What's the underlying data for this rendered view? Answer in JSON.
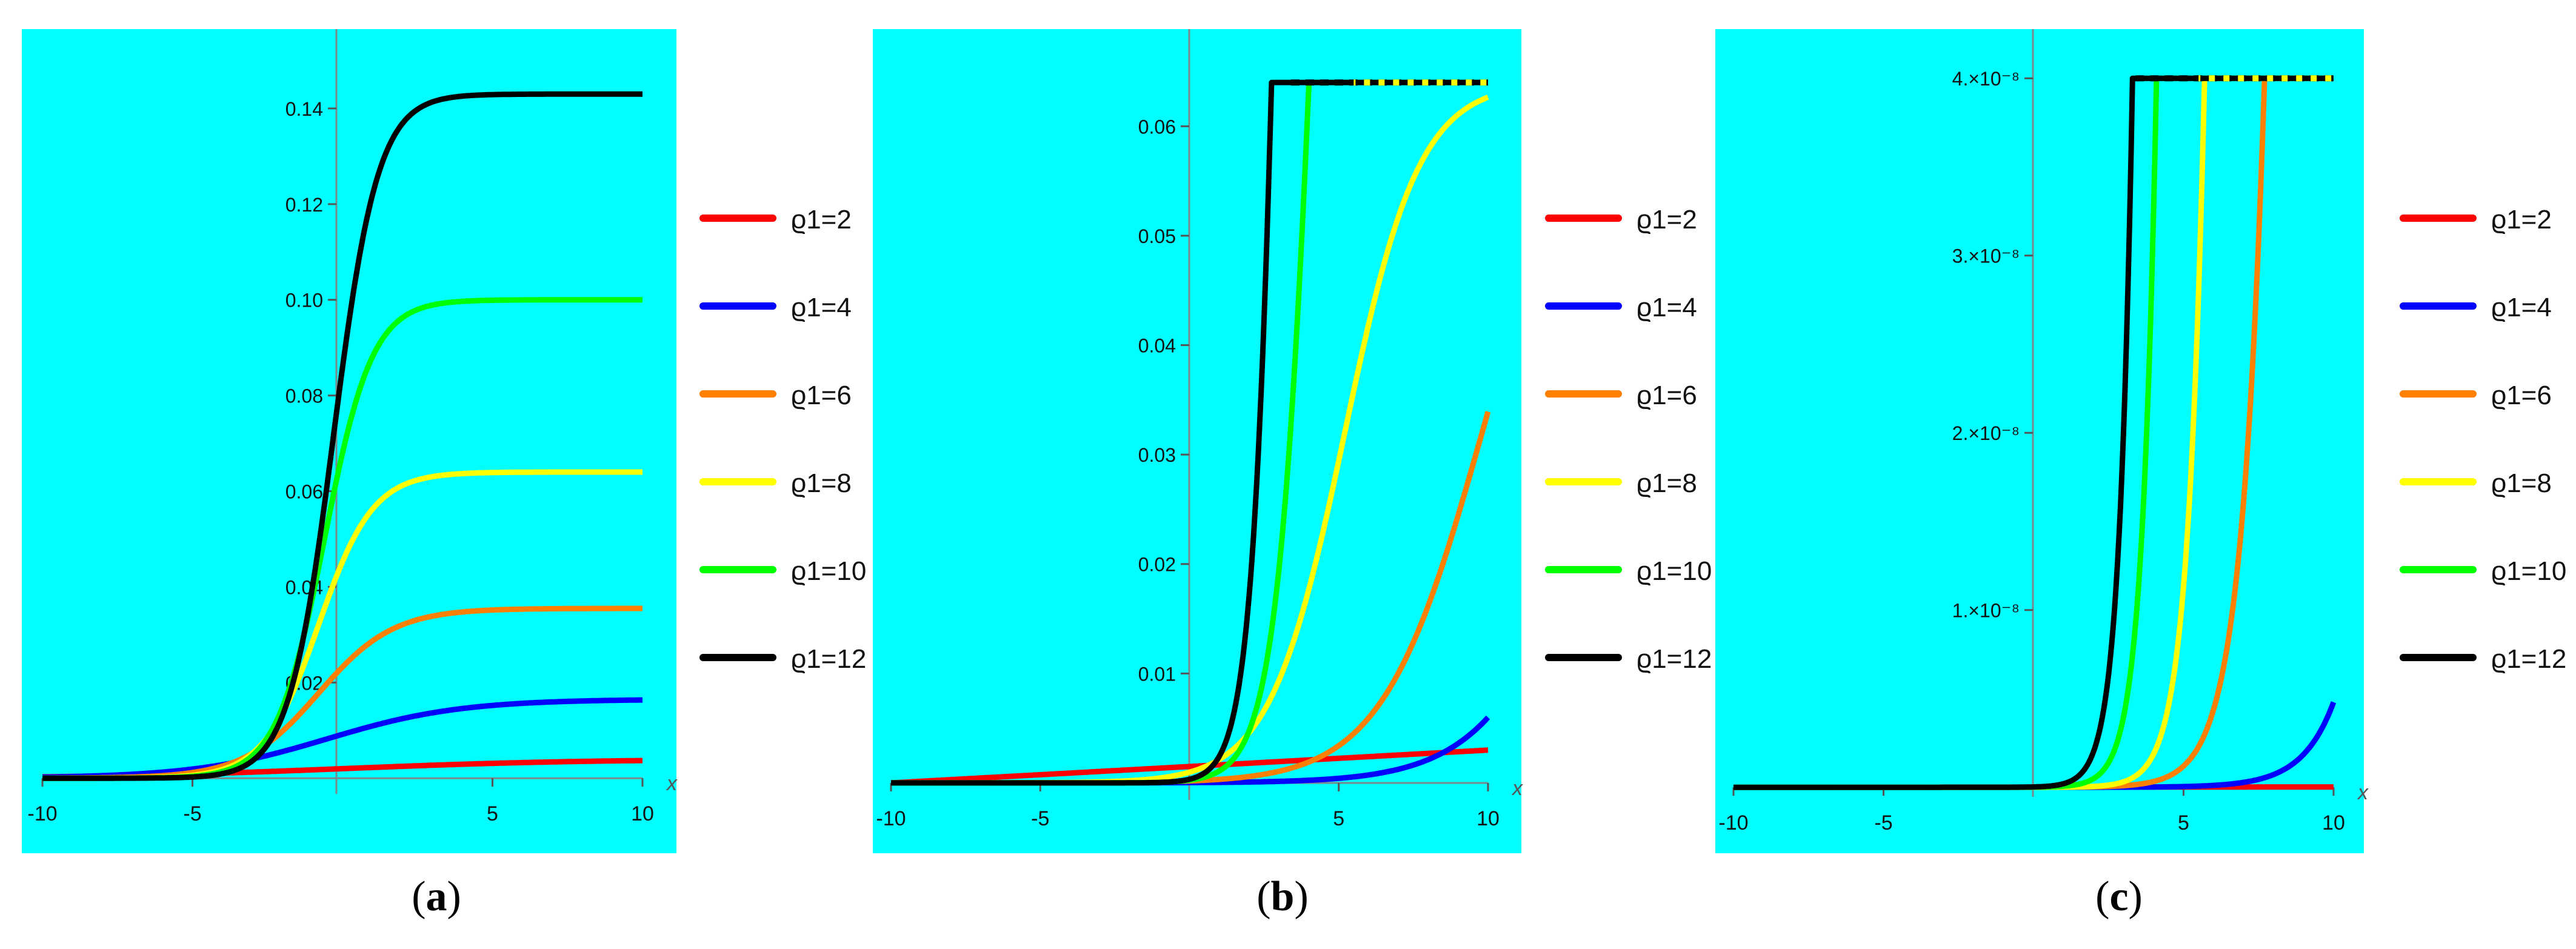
{
  "figure": {
    "captions": [
      {
        "open": "(",
        "letter": "a",
        "close": ")"
      },
      {
        "open": "(",
        "letter": "b",
        "close": ")"
      },
      {
        "open": "(",
        "letter": "c",
        "close": ")"
      }
    ],
    "legend_labels": [
      "ϱ1=2",
      "ϱ1=4",
      "ϱ1=6",
      "ϱ1=8",
      "ϱ1=10",
      "ϱ1=12"
    ],
    "colors": {
      "background": "#00ffff",
      "series": [
        "#ff0000",
        "#0000ff",
        "#ff7f00",
        "#ffff00",
        "#00ff00",
        "#000000"
      ]
    }
  },
  "chart_data": [
    {
      "type": "line",
      "panel": "a",
      "xlabel": "x",
      "ylabel": "",
      "xlim": [
        -10,
        10
      ],
      "ylim": [
        -0.002,
        0.15
      ],
      "xticks": [
        "-10",
        "-5",
        "5",
        "10"
      ],
      "xtick_values": [
        -10,
        -5,
        5,
        10
      ],
      "yticks": [
        "0.02",
        "0.04",
        "0.06",
        "0.08",
        "0.10",
        "0.12",
        "0.14"
      ],
      "ytick_values": [
        0.02,
        0.04,
        0.06,
        0.08,
        0.1,
        0.12,
        0.14
      ],
      "series": [
        {
          "name": "ϱ1=2",
          "color": "#ff0000",
          "model": "logistic",
          "params": {
            "A": 0.004,
            "x0": 0,
            "k": 0.25
          }
        },
        {
          "name": "ϱ1=4",
          "color": "#0000ff",
          "model": "logistic",
          "params": {
            "A": 0.0165,
            "x0": -0.5,
            "k": 0.45
          }
        },
        {
          "name": "ϱ1=6",
          "color": "#ff7f00",
          "model": "logistic",
          "params": {
            "A": 0.0355,
            "x0": -0.8,
            "k": 0.8
          }
        },
        {
          "name": "ϱ1=8",
          "color": "#ffff00",
          "model": "logistic",
          "params": {
            "A": 0.064,
            "x0": -0.8,
            "k": 1.1
          }
        },
        {
          "name": "ϱ1=10",
          "color": "#00ff00",
          "model": "logistic",
          "params": {
            "A": 0.1,
            "x0": -0.6,
            "k": 1.25
          }
        },
        {
          "name": "ϱ1=12",
          "color": "#000000",
          "model": "logistic",
          "params": {
            "A": 0.143,
            "x0": -0.3,
            "k": 1.35
          }
        }
      ]
    },
    {
      "type": "line",
      "panel": "b",
      "xlabel": "x",
      "ylabel": "",
      "xlim": [
        -10,
        10
      ],
      "ylim": [
        -0.001,
        0.066
      ],
      "xticks": [
        "-10",
        "-5",
        "5",
        "10"
      ],
      "xtick_values": [
        -10,
        -5,
        5,
        10
      ],
      "yticks": [
        "0.01",
        "0.02",
        "0.03",
        "0.04",
        "0.05",
        "0.06"
      ],
      "ytick_values": [
        0.01,
        0.02,
        0.03,
        0.04,
        0.05,
        0.06
      ],
      "series": [
        {
          "name": "ϱ1=2",
          "color": "#ff0000",
          "model": "linear",
          "params": {
            "y0": 0.0,
            "y1": 0.003
          }
        },
        {
          "name": "ϱ1=4",
          "color": "#0000ff",
          "model": "logistic",
          "params": {
            "A": 0.06,
            "x0": 14,
            "k": 0.55
          }
        },
        {
          "name": "ϱ1=6",
          "color": "#ff7f00",
          "model": "logistic",
          "params": {
            "A": 0.064,
            "x0": 9.8,
            "k": 0.6
          }
        },
        {
          "name": "ϱ1=8",
          "color": "#ffff00",
          "model": "logistic",
          "params": {
            "A": 0.064,
            "x0": 5.2,
            "k": 0.8
          }
        },
        {
          "name": "ϱ1=10",
          "color": "#00ff00",
          "model": "logistic",
          "params": {
            "A": 0.18,
            "x0": 4.4,
            "k": 1.5
          }
        },
        {
          "name": "ϱ1=12",
          "color": "#000000",
          "model": "logistic",
          "params": {
            "A": 0.3,
            "x0": 3.4,
            "k": 2.0
          }
        }
      ],
      "cap": 0.064
    },
    {
      "type": "line",
      "panel": "c",
      "xlabel": "x",
      "ylabel": "",
      "xlim": [
        -10,
        10
      ],
      "ylim": [
        -0.02,
        4.1
      ],
      "y_unit": "×10^-8",
      "xticks": [
        "-10",
        "-5",
        "5",
        "10"
      ],
      "xtick_values": [
        -10,
        -5,
        5,
        10
      ],
      "yticks": [
        "1.×10⁻⁸",
        "2.×10⁻⁸",
        "3.×10⁻⁸",
        "4.×10⁻⁸"
      ],
      "ytick_values": [
        1,
        2,
        3,
        4
      ],
      "series": [
        {
          "name": "ϱ1=2",
          "color": "#ff0000",
          "model": "linear",
          "params": {
            "y0": 0.0,
            "y1": 0.002
          }
        },
        {
          "name": "ϱ1=4",
          "color": "#0000ff",
          "model": "exp",
          "params": {
            "a": 0.48,
            "x1": 10,
            "k": 0.95
          }
        },
        {
          "name": "ϱ1=6",
          "color": "#ff7f00",
          "model": "exp",
          "params": {
            "a": 4.0,
            "x1": 7.7,
            "k": 1.3
          }
        },
        {
          "name": "ϱ1=8",
          "color": "#ffff00",
          "model": "exp",
          "params": {
            "a": 4.0,
            "x1": 5.7,
            "k": 1.8
          }
        },
        {
          "name": "ϱ1=10",
          "color": "#00ff00",
          "model": "exp",
          "params": {
            "a": 4.0,
            "x1": 4.1,
            "k": 2.1
          }
        },
        {
          "name": "ϱ1=12",
          "color": "#000000",
          "model": "exp",
          "params": {
            "a": 4.0,
            "x1": 3.3,
            "k": 2.3
          }
        }
      ],
      "cap": 4.0
    }
  ]
}
